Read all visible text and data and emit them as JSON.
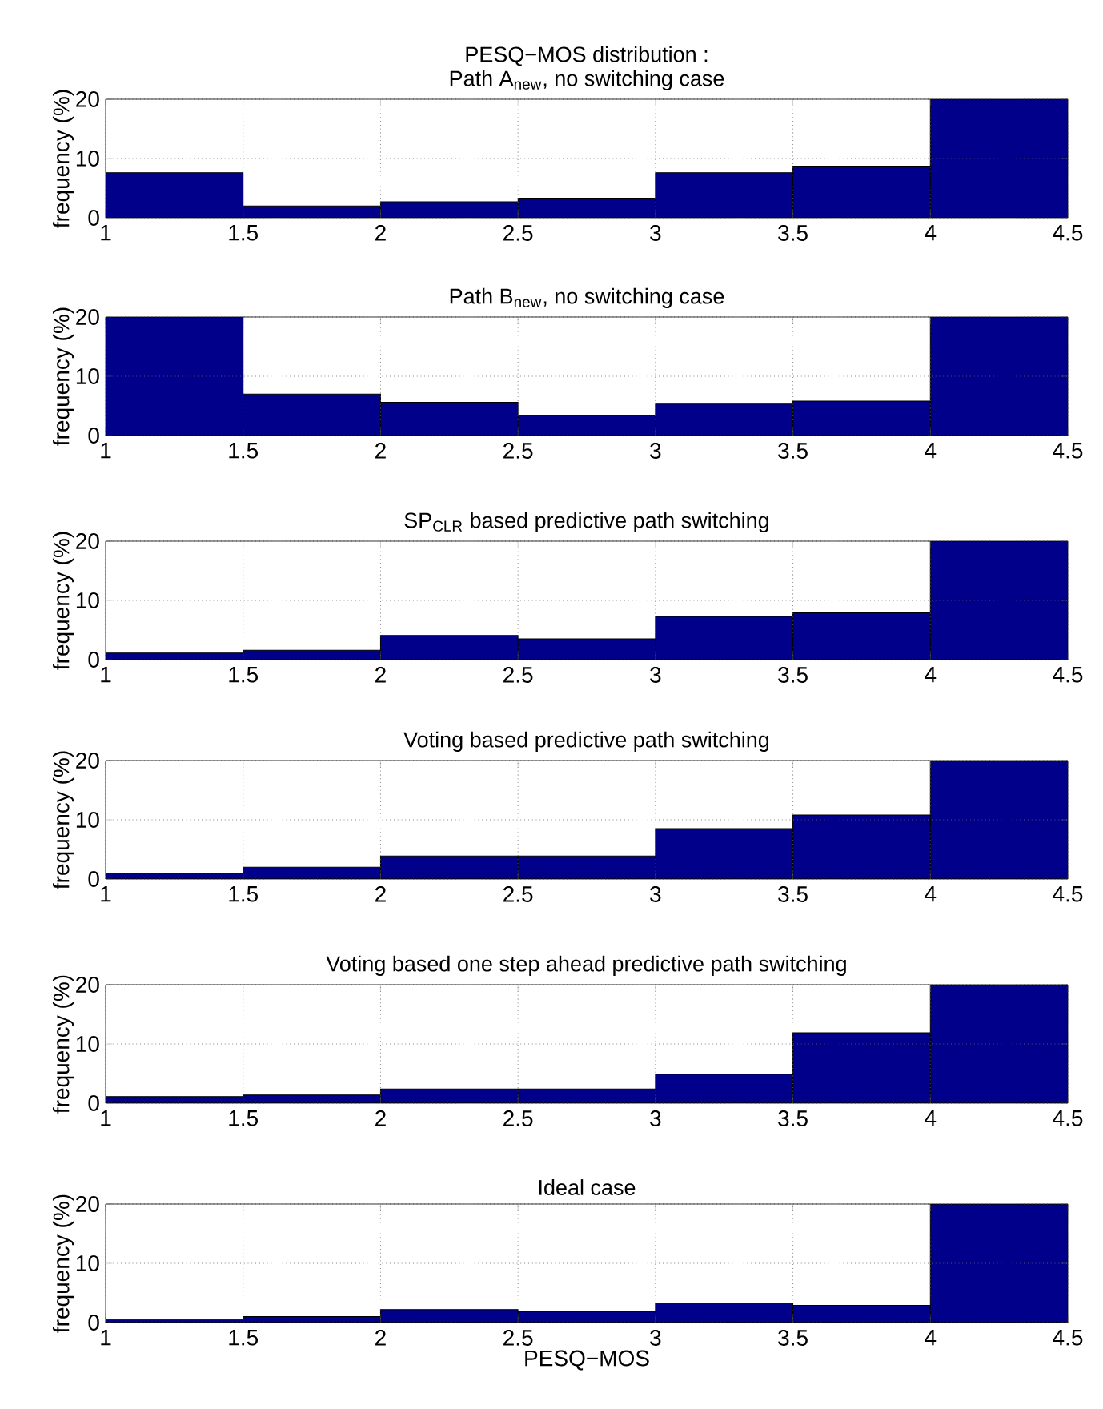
{
  "chart_data": [
    {
      "type": "histogram",
      "title": "PESQ−MOS distribution :",
      "subtitle": "Path A$_{new}$, no switching case",
      "ylabel": "frequency (%)",
      "bins": [
        1,
        1.5,
        2,
        2.5,
        3,
        3.5,
        4,
        4.5
      ],
      "values": [
        7.6,
        2.0,
        2.7,
        3.3,
        7.6,
        8.7,
        20
      ],
      "color": "#00008b",
      "xlim": [
        1,
        4.5
      ],
      "ylim": [
        0,
        20
      ],
      "xticks": [
        1,
        1.5,
        2,
        2.5,
        3,
        3.5,
        4,
        4.5
      ],
      "yticks": [
        0,
        10,
        20
      ],
      "grid": true
    },
    {
      "type": "histogram",
      "title": "Path B$_{new}$, no switching case",
      "ylabel": "frequency (%)",
      "bins": [
        1,
        1.5,
        2,
        2.5,
        3,
        3.5,
        4,
        4.5
      ],
      "values": [
        20,
        7.0,
        5.6,
        3.4,
        5.3,
        5.8,
        20
      ],
      "color": "#00008b",
      "xlim": [
        1,
        4.5
      ],
      "ylim": [
        0,
        20
      ],
      "xticks": [
        1,
        1.5,
        2,
        2.5,
        3,
        3.5,
        4,
        4.5
      ],
      "yticks": [
        0,
        10,
        20
      ],
      "grid": true
    },
    {
      "type": "histogram",
      "title": "SP$_{CLR}$ based predictive path switching",
      "ylabel": "frequency (%)",
      "bins": [
        1,
        1.5,
        2,
        2.5,
        3,
        3.5,
        4,
        4.5
      ],
      "values": [
        1.1,
        1.6,
        4.1,
        3.5,
        7.3,
        7.9,
        20
      ],
      "color": "#00008b",
      "xlim": [
        1,
        4.5
      ],
      "ylim": [
        0,
        20
      ],
      "xticks": [
        1,
        1.5,
        2,
        2.5,
        3,
        3.5,
        4,
        4.5
      ],
      "yticks": [
        0,
        10,
        20
      ],
      "grid": true
    },
    {
      "type": "histogram",
      "title": "Voting based predictive path switching",
      "ylabel": "frequency (%)",
      "bins": [
        1,
        1.5,
        2,
        2.5,
        3,
        3.5,
        4,
        4.5
      ],
      "values": [
        1.0,
        2.0,
        3.9,
        3.9,
        8.5,
        10.8,
        20
      ],
      "color": "#00008b",
      "xlim": [
        1,
        4.5
      ],
      "ylim": [
        0,
        20
      ],
      "xticks": [
        1,
        1.5,
        2,
        2.5,
        3,
        3.5,
        4,
        4.5
      ],
      "yticks": [
        0,
        10,
        20
      ],
      "grid": true
    },
    {
      "type": "histogram",
      "title": "Voting based one step ahead predictive path switching",
      "ylabel": "frequency (%)",
      "bins": [
        1,
        1.5,
        2,
        2.5,
        3,
        3.5,
        4,
        4.5
      ],
      "values": [
        1.1,
        1.4,
        2.4,
        2.4,
        4.9,
        11.9,
        20
      ],
      "color": "#00008b",
      "xlim": [
        1,
        4.5
      ],
      "ylim": [
        0,
        20
      ],
      "xticks": [
        1,
        1.5,
        2,
        2.5,
        3,
        3.5,
        4,
        4.5
      ],
      "yticks": [
        0,
        10,
        20
      ],
      "grid": true
    },
    {
      "type": "histogram",
      "title": "Ideal case",
      "xlabel": "PESQ−MOS",
      "ylabel": "frequency (%)",
      "bins": [
        1,
        1.5,
        2,
        2.5,
        3,
        3.5,
        4,
        4.5
      ],
      "values": [
        0.5,
        1.0,
        2.2,
        1.9,
        3.2,
        2.9,
        20
      ],
      "color": "#00008b",
      "xlim": [
        1,
        4.5
      ],
      "ylim": [
        0,
        20
      ],
      "xticks": [
        1,
        1.5,
        2,
        2.5,
        3,
        3.5,
        4,
        4.5
      ],
      "yticks": [
        0,
        10,
        20
      ],
      "grid": true
    }
  ]
}
